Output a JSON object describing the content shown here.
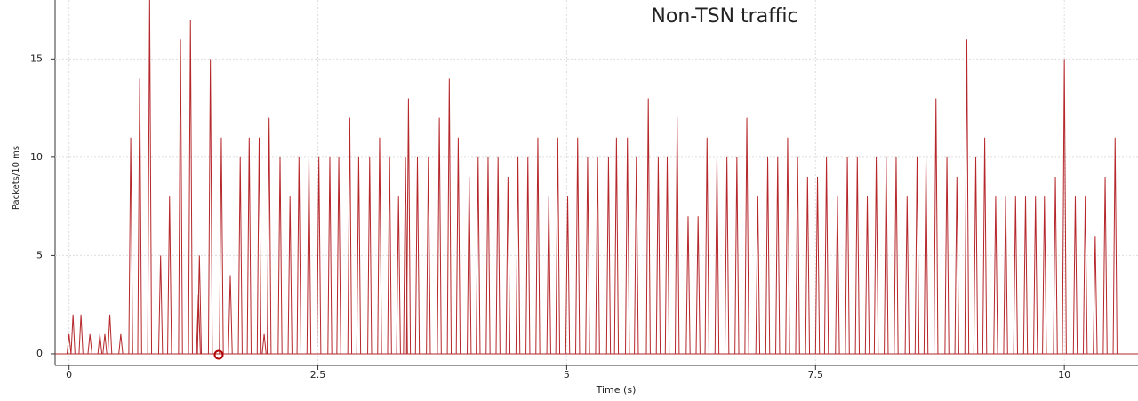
{
  "chart_data": {
    "type": "spike",
    "title": "Non-TSN traffic",
    "x_label": "Time (s)",
    "y_label": "Packets/10 ms",
    "color": "#b5272b",
    "grid": true,
    "xlim": [
      -0.14,
      10.74
    ],
    "ylim": [
      -0.59,
      18
    ],
    "xticks": [
      0,
      2.5,
      5,
      7.5,
      10
    ],
    "yticks": [
      0,
      5,
      10,
      15
    ],
    "x": [
      0.0,
      0.04,
      0.12,
      0.21,
      0.31,
      0.36,
      0.41,
      0.52,
      0.62,
      0.71,
      0.81,
      0.92,
      1.01,
      1.12,
      1.22,
      1.3,
      1.31,
      1.42,
      1.53,
      1.62,
      1.72,
      1.81,
      1.91,
      1.96,
      2.01,
      2.12,
      2.22,
      2.31,
      2.41,
      2.51,
      2.62,
      2.71,
      2.82,
      2.91,
      3.02,
      3.12,
      3.22,
      3.31,
      3.38,
      3.41,
      3.5,
      3.61,
      3.72,
      3.82,
      3.91,
      4.02,
      4.11,
      4.21,
      4.31,
      4.41,
      4.51,
      4.61,
      4.71,
      4.82,
      4.91,
      5.01,
      5.11,
      5.21,
      5.31,
      5.42,
      5.5,
      5.61,
      5.7,
      5.82,
      5.92,
      6.01,
      6.11,
      6.22,
      6.32,
      6.41,
      6.51,
      6.61,
      6.71,
      6.81,
      6.92,
      7.02,
      7.12,
      7.22,
      7.32,
      7.42,
      7.52,
      7.61,
      7.72,
      7.82,
      7.92,
      8.02,
      8.11,
      8.21,
      8.31,
      8.42,
      8.52,
      8.61,
      8.71,
      8.82,
      8.92,
      9.02,
      9.11,
      9.2,
      9.31,
      9.41,
      9.51,
      9.61,
      9.71,
      9.8,
      9.91,
      10.0,
      10.11,
      10.21,
      10.31,
      10.41,
      10.51
    ],
    "values": [
      1,
      2,
      2,
      1,
      1,
      1,
      2,
      1,
      11,
      14,
      18,
      5,
      8,
      16,
      17,
      3,
      5,
      15,
      11,
      4,
      10,
      11,
      11,
      1,
      12,
      10,
      8,
      10,
      10,
      10,
      10,
      10,
      12,
      10,
      10,
      11,
      10,
      8,
      10,
      13,
      10,
      10,
      12,
      14,
      11,
      9,
      10,
      10,
      10,
      9,
      10,
      10,
      11,
      8,
      11,
      8,
      11,
      10,
      10,
      10,
      11,
      11,
      10,
      13,
      10,
      10,
      12,
      7,
      7,
      11,
      10,
      10,
      10,
      12,
      8,
      10,
      10,
      11,
      10,
      9,
      9,
      10,
      8,
      10,
      10,
      8,
      10,
      10,
      10,
      8,
      10,
      10,
      13,
      10,
      9,
      16,
      10,
      11,
      8,
      8,
      8,
      8,
      8,
      8,
      9,
      15,
      8,
      8,
      6,
      9,
      11
    ]
  }
}
